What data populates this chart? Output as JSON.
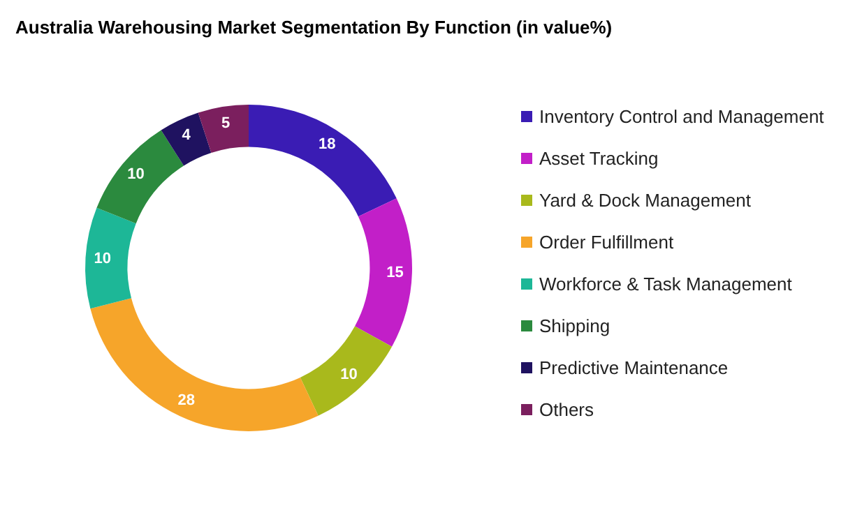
{
  "chart_data": {
    "type": "donut",
    "title": "Australia Warehousing Market Segmentation By Function (in value%)",
    "categories": [
      "Inventory Control and Management",
      "Asset Tracking",
      "Yard & Dock Management",
      "Order Fulfillment",
      "Workforce & Task Management",
      "Shipping",
      "Predictive Maintenance",
      "Others"
    ],
    "values": [
      18,
      15,
      10,
      28,
      10,
      10,
      4,
      5
    ],
    "colors": [
      "#3a1cb4",
      "#c21fc8",
      "#a9b91c",
      "#f6a52a",
      "#1db797",
      "#2b8a3e",
      "#1f1260",
      "#7b1f5e"
    ],
    "data_labels": true,
    "legend": "right"
  }
}
